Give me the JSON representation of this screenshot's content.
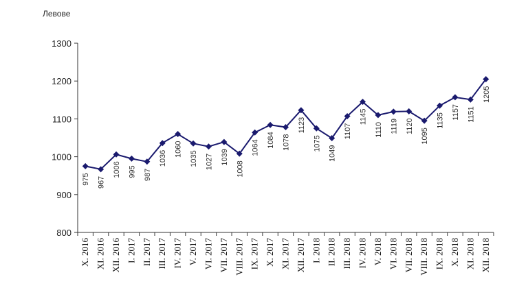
{
  "chart_data": {
    "type": "line",
    "ylabel": "Левове",
    "ylim": [
      800,
      1300
    ],
    "yticks": [
      800,
      900,
      1000,
      1100,
      1200,
      1300
    ],
    "grid": false,
    "categories": [
      "X. 2016",
      "XI. 2016",
      "XII. 2016",
      "I. 2017",
      "II. 2017",
      "III. 2017",
      "IV. 2017",
      "V. 2017",
      "VI. 2017",
      "VII. 2017",
      "VIII. 2017",
      "IX. 2017",
      "X. 2017",
      "XI. 2017",
      "XII. 2017",
      "I. 2018",
      "II. 2018",
      "III. 2018",
      "IV. 2018",
      "V. 2018",
      "VI. 2018",
      "VII. 2018",
      "VIII. 2018",
      "IX. 2018",
      "X. 2018",
      "XI. 2018",
      "XII. 2018"
    ],
    "series": [
      {
        "values": [
          975,
          967,
          1006,
          995,
          987,
          1036,
          1060,
          1035,
          1027,
          1039,
          1008,
          1064,
          1084,
          1078,
          1123,
          1075,
          1049,
          1107,
          1145,
          1110,
          1119,
          1120,
          1095,
          1135,
          1157,
          1151,
          1205
        ]
      }
    ],
    "colors": {
      "line": "#1a1a6e",
      "marker": "#1a1a6e"
    }
  }
}
